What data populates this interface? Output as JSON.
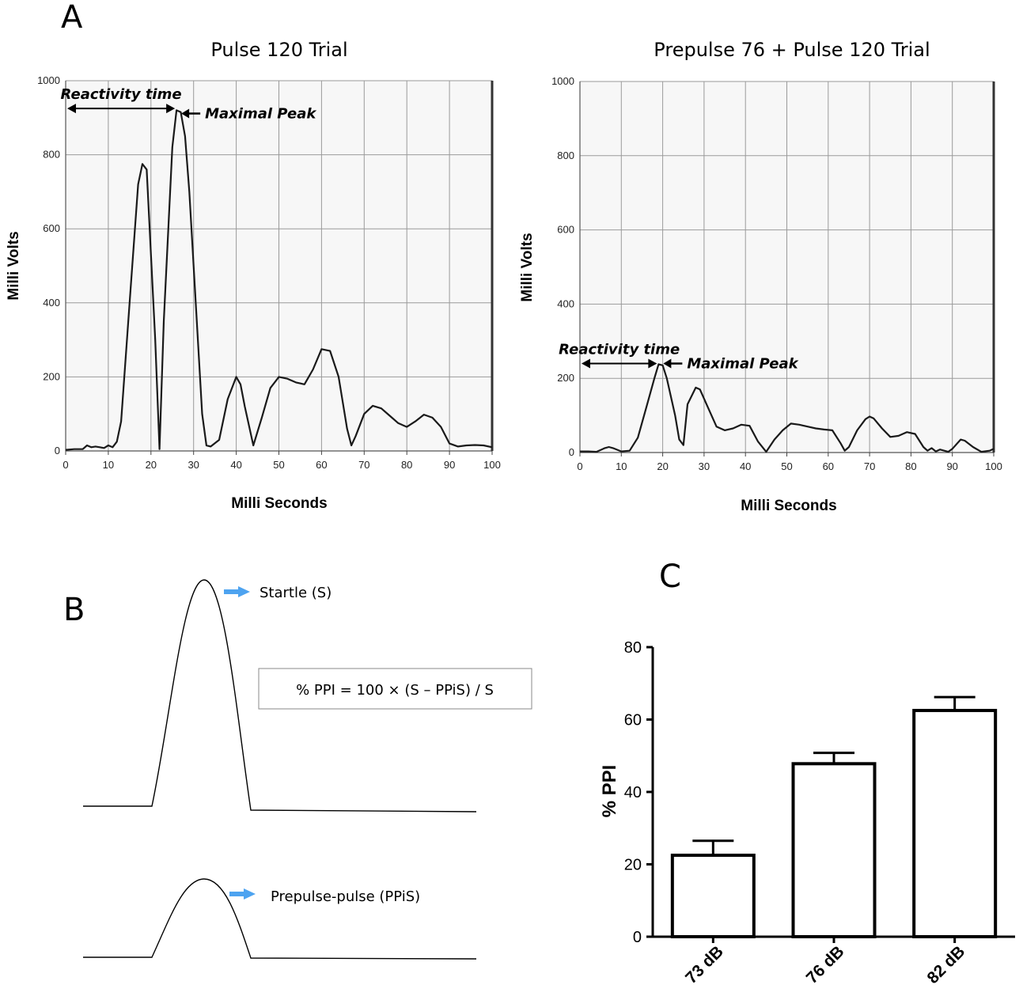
{
  "panel_a": {
    "letter": "A",
    "x_unit_label": "Milli Seconds",
    "y_unit_label": "Milli Volts",
    "annotations": {
      "reactivity": "Reactivity time",
      "peak": "Maximal Peak"
    }
  },
  "panel_b": {
    "letter": "B",
    "startle_label": "Startle (S)",
    "formula": "% PPI = 100 × (S – PPiS) / S",
    "ppis_label": "Prepulse-pulse (PPiS)",
    "arrow_color": "#4da3f0"
  },
  "panel_c": {
    "letter": "C"
  },
  "chart_data": [
    {
      "type": "line",
      "title": "Pulse 120 Trial",
      "xlabel": "Milli Seconds",
      "ylabel": "Milli Volts",
      "xlim": [
        0,
        100
      ],
      "ylim": [
        0,
        1000
      ],
      "x_ticks": [
        0,
        10,
        20,
        30,
        40,
        50,
        60,
        70,
        80,
        90,
        100
      ],
      "y_ticks": [
        0,
        200,
        400,
        600,
        800,
        1000
      ],
      "grid": true,
      "reactivity_time_ms": 26,
      "maximal_peak": 920,
      "series": [
        {
          "x": [
            0,
            2,
            4,
            5,
            6,
            7,
            8,
            9,
            10,
            11,
            12,
            13,
            15,
            17,
            18,
            19,
            21,
            22,
            23,
            25,
            26,
            27,
            28,
            29,
            31,
            32,
            33,
            34,
            36,
            38,
            40,
            41,
            42,
            44,
            46,
            48,
            50,
            52,
            54,
            56,
            58,
            60,
            62,
            64,
            66,
            67,
            68,
            70,
            72,
            74,
            76,
            78,
            80,
            82,
            84,
            86,
            88,
            90,
            92,
            94,
            96,
            98,
            100
          ],
          "y": [
            3,
            5,
            5,
            15,
            10,
            12,
            10,
            8,
            15,
            10,
            25,
            80,
            400,
            720,
            775,
            760,
            300,
            5,
            350,
            820,
            920,
            915,
            850,
            700,
            300,
            100,
            15,
            12,
            30,
            140,
            200,
            180,
            120,
            15,
            90,
            170,
            200,
            195,
            185,
            180,
            220,
            275,
            270,
            200,
            60,
            15,
            40,
            100,
            122,
            115,
            95,
            75,
            65,
            80,
            98,
            90,
            65,
            20,
            12,
            15,
            16,
            15,
            10
          ]
        }
      ]
    },
    {
      "type": "line",
      "title": "Prepulse 76 + Pulse 120 Trial",
      "xlabel": "Milli Seconds",
      "ylabel": "Milli Volts",
      "xlim": [
        0,
        100
      ],
      "ylim": [
        0,
        1000
      ],
      "x_ticks": [
        0,
        10,
        20,
        30,
        40,
        50,
        60,
        70,
        80,
        90,
        100
      ],
      "y_ticks": [
        0,
        200,
        400,
        600,
        800,
        1000
      ],
      "grid": true,
      "reactivity_time_ms": 19,
      "maximal_peak": 240,
      "series": [
        {
          "x": [
            0,
            2,
            4,
            6,
            7,
            8,
            10,
            12,
            14,
            16,
            18,
            19,
            20,
            21,
            23,
            24,
            25,
            26,
            28,
            29,
            31,
            33,
            35,
            37,
            39,
            41,
            43,
            45,
            47,
            49,
            51,
            53,
            55,
            57,
            59,
            61,
            63,
            64,
            65,
            67,
            69,
            70,
            71,
            73,
            75,
            77,
            79,
            81,
            83,
            84,
            85,
            86,
            87,
            89,
            90,
            92,
            93,
            95,
            97,
            99,
            100
          ],
          "y": [
            3,
            3,
            2,
            12,
            15,
            12,
            3,
            5,
            40,
            120,
            200,
            238,
            235,
            200,
            100,
            35,
            20,
            130,
            175,
            170,
            120,
            70,
            60,
            65,
            75,
            72,
            30,
            2,
            35,
            60,
            78,
            75,
            70,
            65,
            62,
            60,
            25,
            5,
            15,
            60,
            90,
            97,
            92,
            65,
            42,
            45,
            55,
            50,
            15,
            5,
            12,
            3,
            8,
            2,
            10,
            35,
            32,
            15,
            2,
            5,
            10
          ]
        }
      ]
    },
    {
      "type": "bar",
      "title": "",
      "xlabel": "",
      "ylabel": "% PPI",
      "categories": [
        "73 dB",
        "76 dB",
        "82 dB"
      ],
      "values": [
        22.5,
        47.8,
        62.5
      ],
      "error": [
        4,
        3,
        3.7
      ],
      "ylim": [
        0,
        80
      ],
      "y_ticks": [
        0,
        20,
        40,
        60,
        80
      ],
      "grid": false
    }
  ]
}
